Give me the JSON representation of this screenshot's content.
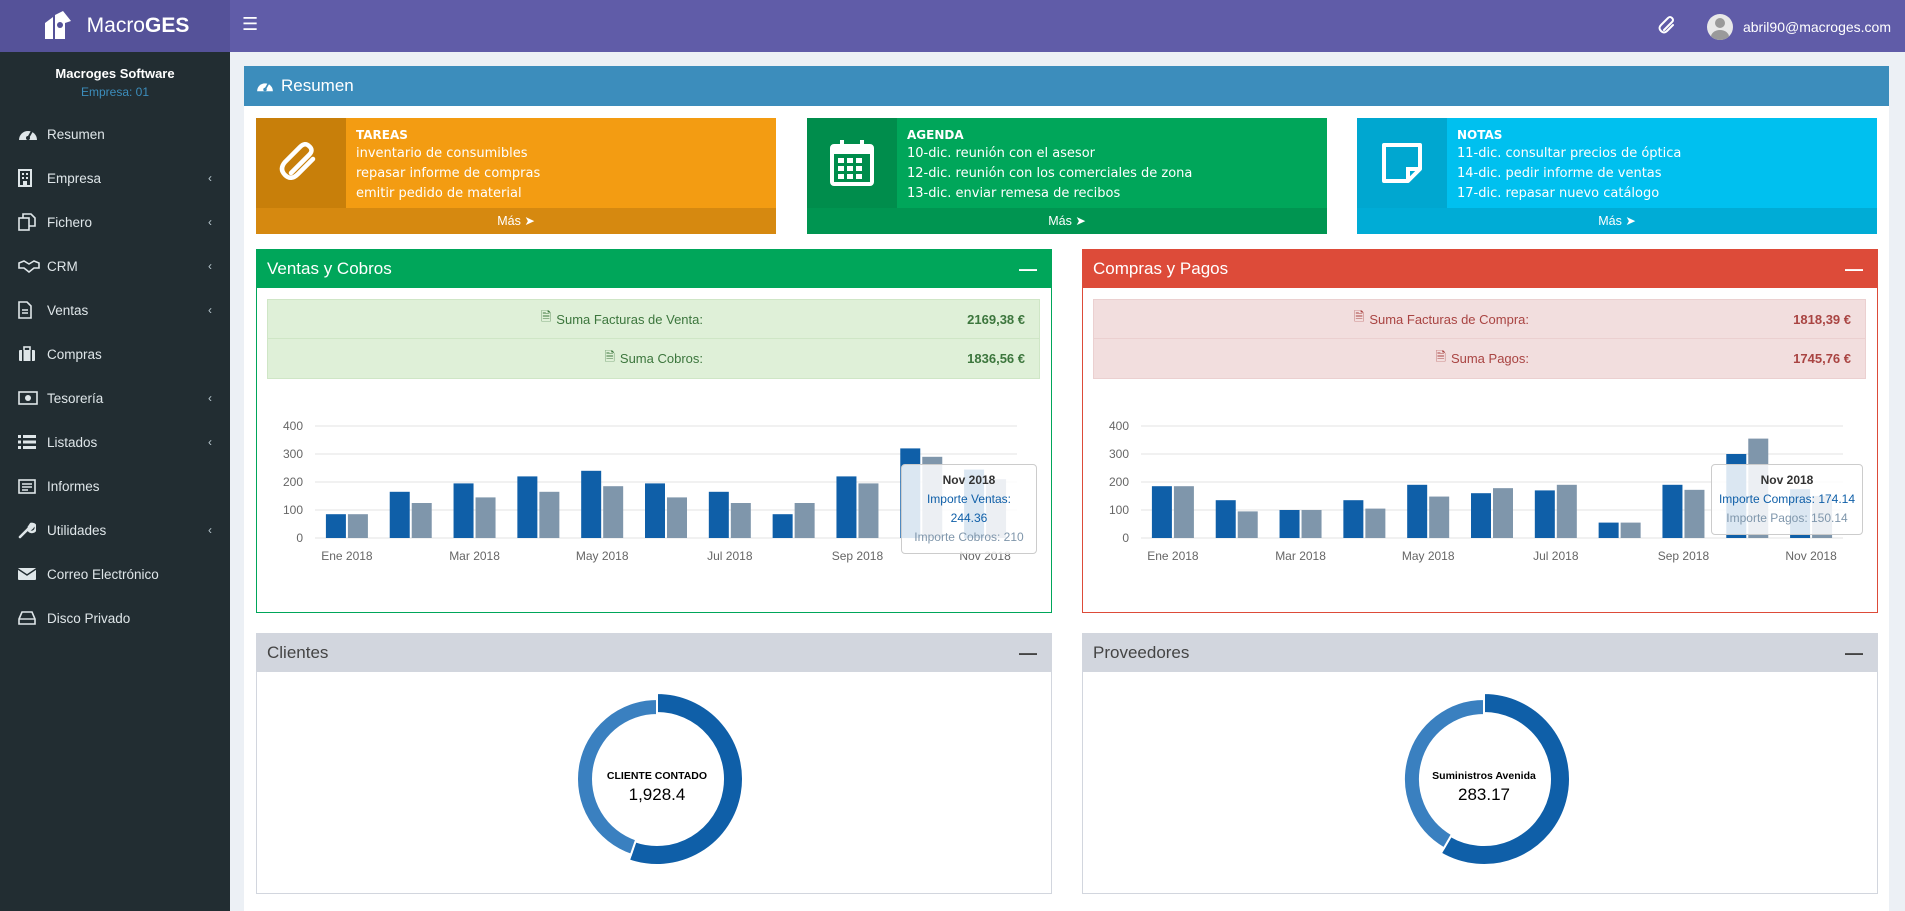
{
  "app": {
    "brand_a": "Macro",
    "brand_b": "GES",
    "user_email": "abril90@macroges.com"
  },
  "sidebar": {
    "company_name": "Macroges Software",
    "company_id": "Empresa: 01",
    "items": [
      {
        "label": "Resumen",
        "icon": "dashboard-icon",
        "chevron": false
      },
      {
        "label": "Empresa",
        "icon": "building-icon",
        "chevron": true
      },
      {
        "label": "Fichero",
        "icon": "files-icon",
        "chevron": true
      },
      {
        "label": "CRM",
        "icon": "handshake-icon",
        "chevron": true
      },
      {
        "label": "Ventas",
        "icon": "document-icon",
        "chevron": true
      },
      {
        "label": "Compras",
        "icon": "briefcase-icon",
        "chevron": false
      },
      {
        "label": "Tesorería",
        "icon": "money-icon",
        "chevron": true
      },
      {
        "label": "Listados",
        "icon": "list-icon",
        "chevron": true
      },
      {
        "label": "Informes",
        "icon": "report-icon",
        "chevron": false
      },
      {
        "label": "Utilidades",
        "icon": "wrench-icon",
        "chevron": true
      },
      {
        "label": "Correo Electrónico",
        "icon": "envelope-icon",
        "chevron": false
      },
      {
        "label": "Disco Privado",
        "icon": "hdd-icon",
        "chevron": false
      }
    ]
  },
  "main": {
    "title": "Resumen"
  },
  "info_boxes": {
    "tareas": {
      "title": "TAREAS",
      "lines": [
        "inventario de consumibles",
        "repasar informe de compras",
        "emitir pedido de material"
      ],
      "more": "Más",
      "color": "#f39c12",
      "dark": "#c87f0a"
    },
    "agenda": {
      "title": "AGENDA",
      "lines": [
        "10-dic. reunión con el asesor",
        "12-dic. reunión con los comerciales de zona",
        "13-dic. enviar remesa de recibos"
      ],
      "more": "Más",
      "color": "#00a65a",
      "dark": "#008d4c"
    },
    "notas": {
      "title": "NOTAS",
      "lines": [
        "11-dic. consultar precios de óptica",
        "14-dic. pedir informe de ventas",
        "17-dic. repasar nuevo catálogo"
      ],
      "more": "Más",
      "color": "#00c0ef",
      "dark": "#00a7d0"
    }
  },
  "ventas": {
    "title": "Ventas y Cobros",
    "row1_label": "Suma Facturas de Venta:",
    "row1_value": "2169,38 €",
    "row2_label": "Suma Cobros:",
    "row2_value": "1836,56 €",
    "tooltip": {
      "title": "Nov 2018",
      "line1": "Importe Ventas: 244.36",
      "line2": "Importe Cobros: 210"
    }
  },
  "compras": {
    "title": "Compras y Pagos",
    "row1_label": "Suma Facturas de Compra:",
    "row1_value": "1818,39 €",
    "row2_label": "Suma Pagos:",
    "row2_value": "1745,76 €",
    "tooltip": {
      "title": "Nov 2018",
      "line1": "Importe Compras: 174.14",
      "line2": "Importe Pagos: 150.14"
    }
  },
  "clientes": {
    "title": "Clientes",
    "center_name": "CLIENTE CONTADO",
    "center_value": "1,928.4"
  },
  "proveedores": {
    "title": "Proveedores",
    "center_name": "Suministros Avenida",
    "center_value": "283.17"
  },
  "chart_data": [
    {
      "type": "bar",
      "categories": [
        "Ene 2018",
        "Feb 2018",
        "Mar 2018",
        "Abr 2018",
        "May 2018",
        "Jun 2018",
        "Jul 2018",
        "Ago 2018",
        "Sep 2018",
        "Oct 2018",
        "Nov 2018"
      ],
      "tick_labels": [
        "Ene 2018",
        "Mar 2018",
        "May 2018",
        "Jul 2018",
        "Sep 2018",
        "Nov 2018"
      ],
      "series": [
        {
          "name": "Importe Ventas",
          "color": "#0f5fa8",
          "values": [
            85,
            165,
            195,
            220,
            240,
            195,
            165,
            85,
            220,
            320,
            244.36
          ]
        },
        {
          "name": "Importe Cobros",
          "color": "#7f96ab",
          "values": [
            85,
            125,
            145,
            165,
            185,
            145,
            125,
            125,
            195,
            290,
            210
          ]
        }
      ],
      "ylim": [
        0,
        400
      ],
      "yticks": [
        0,
        100,
        200,
        300,
        400
      ],
      "grid": true
    },
    {
      "type": "bar",
      "categories": [
        "Ene 2018",
        "Feb 2018",
        "Mar 2018",
        "Abr 2018",
        "May 2018",
        "Jun 2018",
        "Jul 2018",
        "Ago 2018",
        "Sep 2018",
        "Oct 2018",
        "Nov 2018"
      ],
      "tick_labels": [
        "Ene 2018",
        "Mar 2018",
        "May 2018",
        "Jul 2018",
        "Sep 2018",
        "Nov 2018"
      ],
      "series": [
        {
          "name": "Importe Compras",
          "color": "#0f5fa8",
          "values": [
            185,
            135,
            100,
            135,
            190,
            160,
            170,
            55,
            190,
            300,
            174.14
          ]
        },
        {
          "name": "Importe Pagos",
          "color": "#7f96ab",
          "values": [
            185,
            95,
            100,
            105,
            148,
            178,
            190,
            55,
            172,
            355,
            150.14
          ]
        }
      ],
      "ylim": [
        0,
        400
      ],
      "yticks": [
        0,
        100,
        200,
        300,
        400
      ],
      "grid": true
    },
    {
      "type": "pie",
      "slices": [
        {
          "label": "CLIENTE CONTADO",
          "value": 1928.4,
          "color": "#0f5fa8"
        },
        {
          "label": "",
          "value": 1560,
          "color": "#3a80c0"
        }
      ]
    },
    {
      "type": "pie",
      "slices": [
        {
          "label": "Suministros Avenida",
          "value": 283.17,
          "color": "#0f5fa8"
        },
        {
          "label": "",
          "value": 202,
          "color": "#3a80c0"
        }
      ]
    }
  ]
}
